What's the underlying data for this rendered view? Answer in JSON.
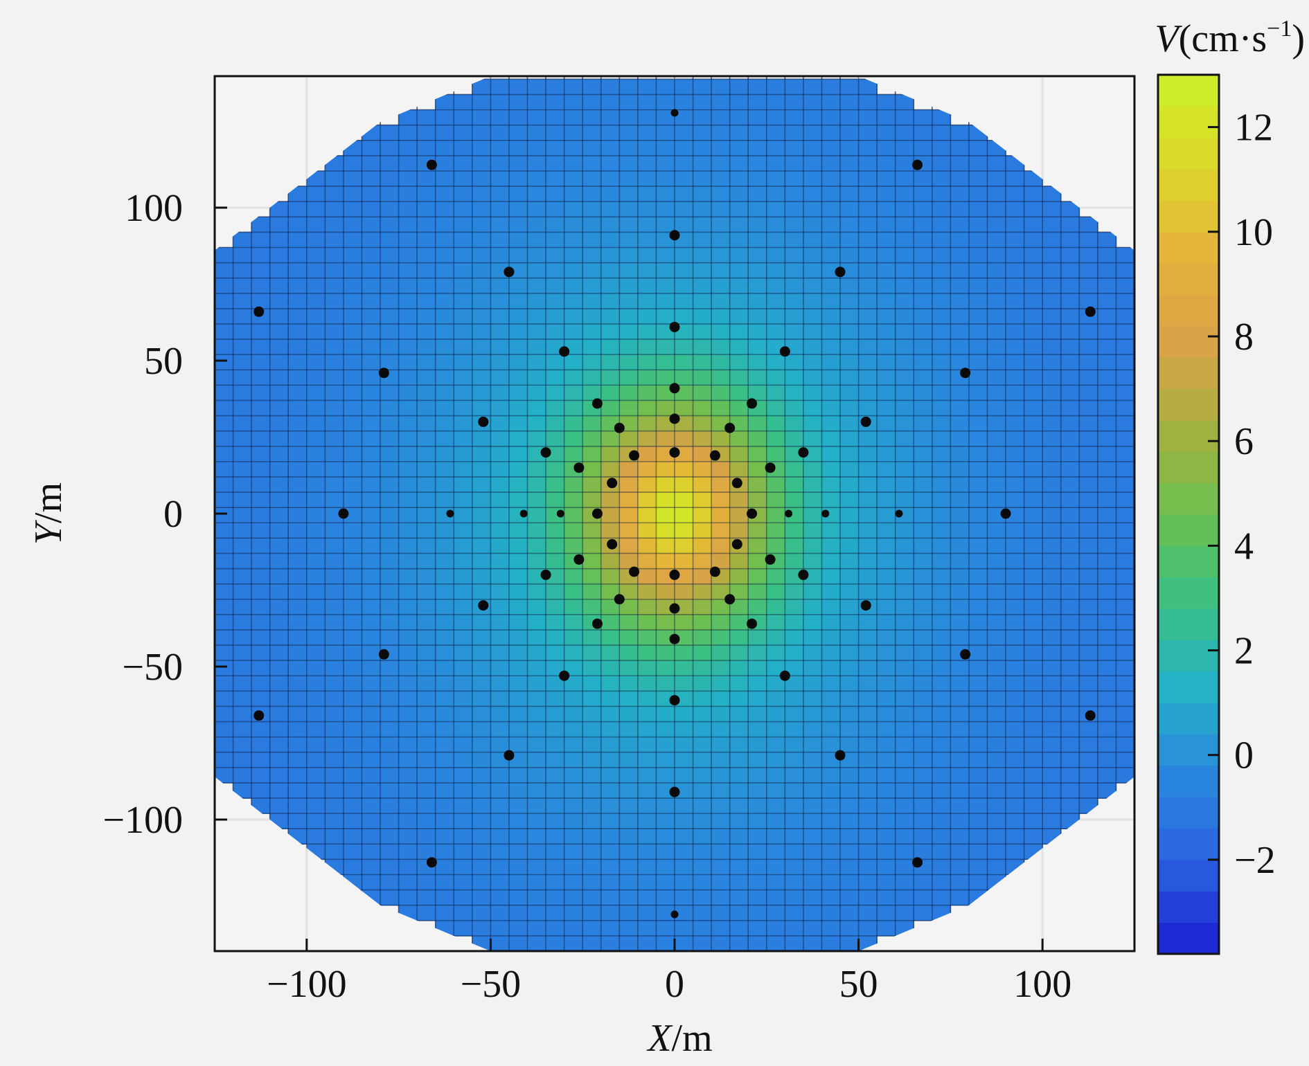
{
  "chart_data": {
    "type": "heatmap",
    "title": "",
    "xlabel": {
      "var": "X",
      "unit": "/m"
    },
    "ylabel": {
      "var": "Y",
      "unit": "/m"
    },
    "colorbar_label": {
      "var": "V",
      "unit_open": "(cm·s",
      "unit_sup": "−1",
      "unit_close": ")"
    },
    "xlim": [
      -125,
      125
    ],
    "ylim": [
      -143,
      143
    ],
    "x_ticks": [
      -100,
      -50,
      0,
      50,
      100
    ],
    "x_tick_labels": [
      "−100",
      "−50",
      "0",
      "50",
      "100"
    ],
    "y_ticks": [
      -100,
      -50,
      0,
      50,
      100
    ],
    "y_tick_labels": [
      "−100",
      "−50",
      "0",
      "50",
      "100"
    ],
    "color_range": [
      -3.8,
      13.0
    ],
    "colorbar_ticks": [
      -2,
      0,
      2,
      4,
      6,
      8,
      10,
      12
    ],
    "colorbar_tick_labels": [
      "−2",
      "0",
      "2",
      "4",
      "6",
      "8",
      "10",
      "12"
    ],
    "colormap": [
      "#1a1fd0",
      "#2a5fe0",
      "#2a86de",
      "#24b0c8",
      "#3ac084",
      "#6cc050",
      "#a8b040",
      "#dba247",
      "#e4b53a",
      "#dcd82a",
      "#ccf028"
    ],
    "grid_step": 5,
    "field": {
      "peak_value": 13.0,
      "background_value": -1.2,
      "decay_x": 42,
      "decay_y": 58,
      "boundary": [
        [
          -125,
          86
        ],
        [
          -80,
          128
        ],
        [
          -50,
          143
        ],
        [
          50,
          143
        ],
        [
          80,
          128
        ],
        [
          125,
          86
        ],
        [
          125,
          -86
        ],
        [
          80,
          -128
        ],
        [
          50,
          -143
        ],
        [
          -50,
          -143
        ],
        [
          -80,
          -128
        ],
        [
          -125,
          -86
        ]
      ]
    },
    "points": [
      [
        0,
        131
      ],
      [
        -66,
        114
      ],
      [
        66,
        114
      ],
      [
        0,
        91
      ],
      [
        -45,
        79
      ],
      [
        45,
        79
      ],
      [
        -113,
        66
      ],
      [
        113,
        66
      ],
      [
        0,
        61
      ],
      [
        -30,
        53
      ],
      [
        30,
        53
      ],
      [
        -79,
        46
      ],
      [
        79,
        46
      ],
      [
        0,
        41
      ],
      [
        -21,
        36
      ],
      [
        21,
        36
      ],
      [
        -52,
        30
      ],
      [
        52,
        30
      ],
      [
        0,
        31
      ],
      [
        -15,
        28
      ],
      [
        15,
        28
      ],
      [
        -35,
        20
      ],
      [
        35,
        20
      ],
      [
        0,
        20
      ],
      [
        -11,
        19
      ],
      [
        11,
        19
      ],
      [
        -26,
        15
      ],
      [
        26,
        15
      ],
      [
        -17,
        10
      ],
      [
        17,
        10
      ],
      [
        -90,
        0
      ],
      [
        -61,
        0
      ],
      [
        -41,
        0
      ],
      [
        -31,
        0
      ],
      [
        -21,
        0
      ],
      [
        21,
        0
      ],
      [
        31,
        0
      ],
      [
        41,
        0
      ],
      [
        61,
        0
      ],
      [
        90,
        0
      ],
      [
        -17,
        -10
      ],
      [
        17,
        -10
      ],
      [
        -26,
        -15
      ],
      [
        26,
        -15
      ],
      [
        -11,
        -19
      ],
      [
        11,
        -19
      ],
      [
        -35,
        -20
      ],
      [
        35,
        -20
      ],
      [
        0,
        -20
      ],
      [
        -15,
        -28
      ],
      [
        15,
        -28
      ],
      [
        0,
        -31
      ],
      [
        -52,
        -30
      ],
      [
        52,
        -30
      ],
      [
        -21,
        -36
      ],
      [
        21,
        -36
      ],
      [
        0,
        -41
      ],
      [
        -79,
        -46
      ],
      [
        79,
        -46
      ],
      [
        -30,
        -53
      ],
      [
        30,
        -53
      ],
      [
        0,
        -61
      ],
      [
        -113,
        -66
      ],
      [
        113,
        -66
      ],
      [
        -45,
        -79
      ],
      [
        45,
        -79
      ],
      [
        0,
        -91
      ],
      [
        -66,
        -114
      ],
      [
        66,
        -114
      ],
      [
        0,
        -131
      ]
    ]
  }
}
